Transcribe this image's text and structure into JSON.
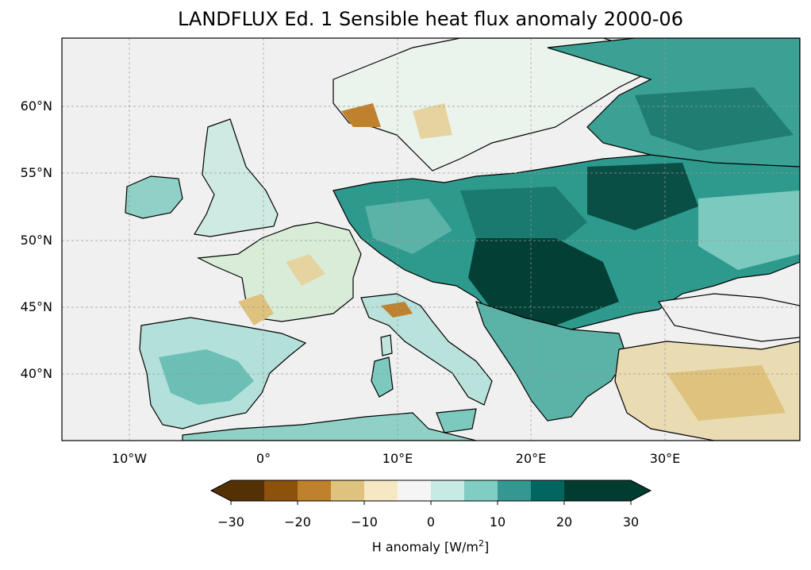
{
  "title": "LANDFLUX Ed. 1 Sensible heat flux anomaly 2000-06",
  "map": {
    "lat_labels": [
      "60°N",
      "55°N",
      "50°N",
      "45°N",
      "40°N"
    ],
    "lon_labels": [
      "10°W",
      "0°",
      "10°E",
      "20°E",
      "30°E"
    ],
    "ocean_color": "#f0f0f0",
    "gridlines": true
  },
  "colorbar": {
    "label_text": "H anomaly [W/m",
    "label_sup": "2",
    "label_close": "]",
    "ticks": [
      "−30",
      "−20",
      "−10",
      "0",
      "10",
      "20",
      "30"
    ],
    "colors": [
      "#543005",
      "#8c510a",
      "#bf812d",
      "#dfc27d",
      "#f6e8c3",
      "#f5f5f5",
      "#c7eae5",
      "#80cdc1",
      "#35978f",
      "#01665e",
      "#003c30",
      "#003c30"
    ],
    "cmap": "BrBG"
  }
}
